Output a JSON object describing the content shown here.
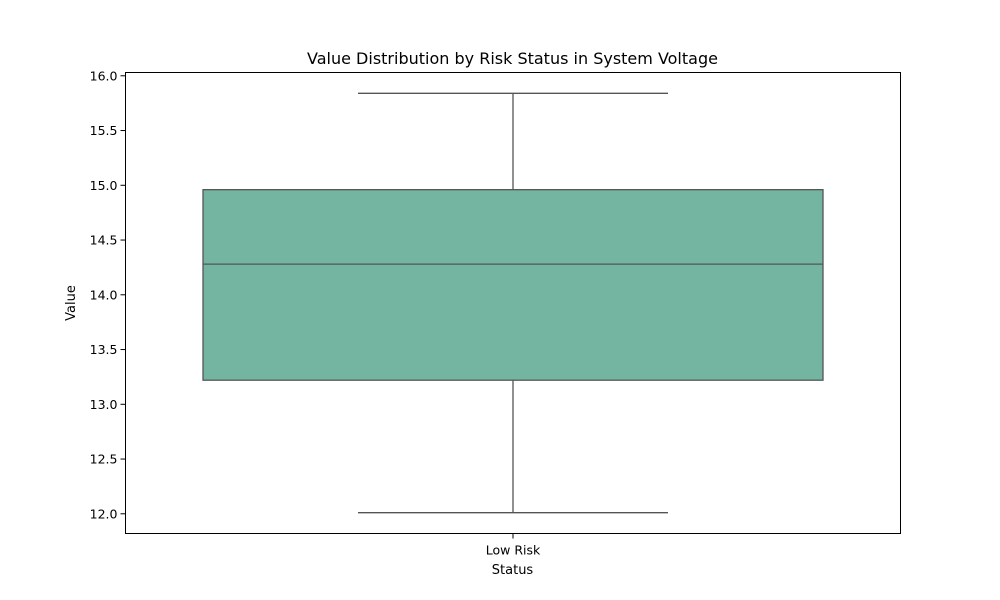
{
  "chart_data": {
    "type": "box",
    "title": "Value Distribution by Risk Status in System Voltage",
    "xlabel": "Status",
    "ylabel": "Value",
    "categories": [
      "Low Risk"
    ],
    "boxes": [
      {
        "category": "Low Risk",
        "whisker_low": 12.01,
        "q1": 13.22,
        "median": 14.28,
        "q3": 14.96,
        "whisker_high": 15.84
      }
    ],
    "ylim": [
      11.82,
      16.03
    ],
    "yticks": [
      "12.0",
      "12.5",
      "13.0",
      "13.5",
      "14.0",
      "14.5",
      "15.0",
      "15.5",
      "16.0"
    ],
    "grid": false,
    "colors": {
      "box_fill": "#73b5a1",
      "line": "#555555",
      "frame": "#000000"
    }
  }
}
